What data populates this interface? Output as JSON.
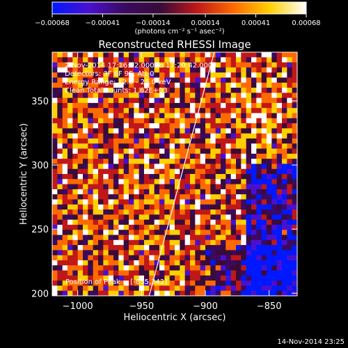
{
  "chart_data": {
    "type": "heatmap",
    "title": "Reconstructed RHESSI Image",
    "xlabel": "Heliocentric X (arcsec)",
    "ylabel": "Heliocentric Y (arcsec)",
    "xlim": [
      -1020,
      -828
    ],
    "ylim": [
      198,
      388
    ],
    "x_ticks": [
      -1000,
      -950,
      -900,
      -850
    ],
    "y_ticks": [
      200,
      250,
      300,
      350
    ],
    "x_tick_labels": [
      "−1000",
      "−950",
      "−900",
      "−850"
    ],
    "y_tick_labels": [
      "200",
      "250",
      "300",
      "350"
    ],
    "colorbar": {
      "min": -0.00068,
      "max": 0.00068,
      "ticks": [
        -0.00068,
        -0.00041,
        -0.00014,
        0.00014,
        0.00041,
        0.00068
      ],
      "tick_labels": [
        "−0.00068",
        "−0.00041",
        "−0.00014",
        "0.00014",
        "0.00041",
        "0.00068"
      ],
      "unit_label": "(photons cm⁻² s⁻¹ asec⁻²)",
      "colors": [
        "#0018ff",
        "#4a10d0",
        "#3a0a60",
        "#3a0a3a",
        "#c01818",
        "#ff6a00",
        "#ffd000",
        "#ffffff"
      ]
    },
    "annotations": {
      "time_range": "2-Nov-2014 17:16:12.000 to 17:20:42.000",
      "detectors": "Detectors: 3F 6F 9F, Att 0",
      "energy": "Energy Range: 12.0 - 25.0 keV",
      "method": "Clean    Total counts: 1.62E+03",
      "peak": "Position of Peak = [-855,342]"
    },
    "peak_position": [
      -855,
      342
    ],
    "limb_line": [
      [
        -944,
        198
      ],
      [
        -893,
        388
      ]
    ],
    "grid": false
  },
  "footer": {
    "timestamp": "14-Nov-2014 23:25"
  }
}
